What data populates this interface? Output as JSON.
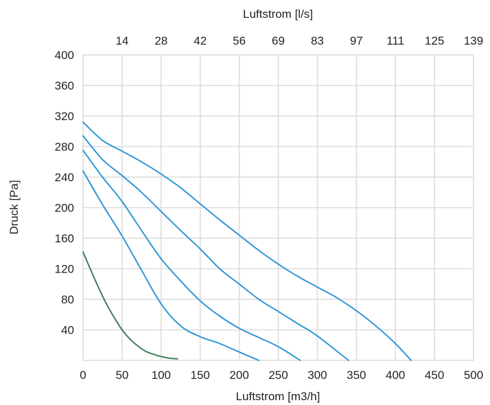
{
  "chart_data": {
    "type": "line",
    "title": "",
    "xlabel": "Luftstrom [m3/h]",
    "x2label": "Luftstrom [l/s]",
    "ylabel": "Druck [Pa]",
    "xlim": [
      0,
      500
    ],
    "ylim": [
      0,
      400
    ],
    "grid": true,
    "legend": "none",
    "x_ticks": [
      "0",
      "50",
      "100",
      "150",
      "200",
      "250",
      "300",
      "350",
      "400",
      "450",
      "500"
    ],
    "x2_ticks": [
      "14",
      "28",
      "42",
      "56",
      "69",
      "83",
      "97",
      "111",
      "125",
      "139"
    ],
    "y_ticks": [
      "40",
      "80",
      "120",
      "160",
      "200",
      "240",
      "280",
      "320",
      "360",
      "400"
    ],
    "series": [
      {
        "color": "#3e7d57",
        "x": [
          0,
          10,
          20,
          30,
          40,
          50,
          60,
          70,
          80,
          90,
          100,
          110,
          121
        ],
        "y": [
          142,
          118,
          95,
          74,
          56,
          40,
          28,
          19,
          12,
          8,
          5,
          3,
          2
        ]
      },
      {
        "color": "#2f95d6",
        "x": [
          0,
          25,
          50,
          75,
          100,
          125,
          150,
          175,
          200,
          225
        ],
        "y": [
          248,
          204,
          163,
          118,
          74,
          45,
          31,
          22,
          11,
          0
        ]
      },
      {
        "color": "#2f95d6",
        "x": [
          0,
          25,
          50,
          75,
          100,
          125,
          150,
          175,
          200,
          225,
          250,
          278
        ],
        "y": [
          275,
          240,
          208,
          170,
          133,
          104,
          78,
          58,
          42,
          30,
          18,
          0
        ]
      },
      {
        "color": "#2f95d6",
        "x": [
          0,
          25,
          50,
          75,
          100,
          125,
          150,
          175,
          200,
          225,
          250,
          275,
          300,
          340
        ],
        "y": [
          294,
          263,
          242,
          220,
          195,
          170,
          146,
          120,
          100,
          80,
          64,
          48,
          32,
          0
        ]
      },
      {
        "color": "#2f95d6",
        "x": [
          0,
          25,
          50,
          75,
          100,
          125,
          150,
          175,
          200,
          225,
          250,
          275,
          300,
          325,
          350,
          375,
          400,
          420
        ],
        "y": [
          312,
          288,
          274,
          260,
          244,
          226,
          205,
          184,
          164,
          144,
          126,
          110,
          96,
          82,
          65,
          45,
          22,
          0
        ]
      }
    ]
  }
}
